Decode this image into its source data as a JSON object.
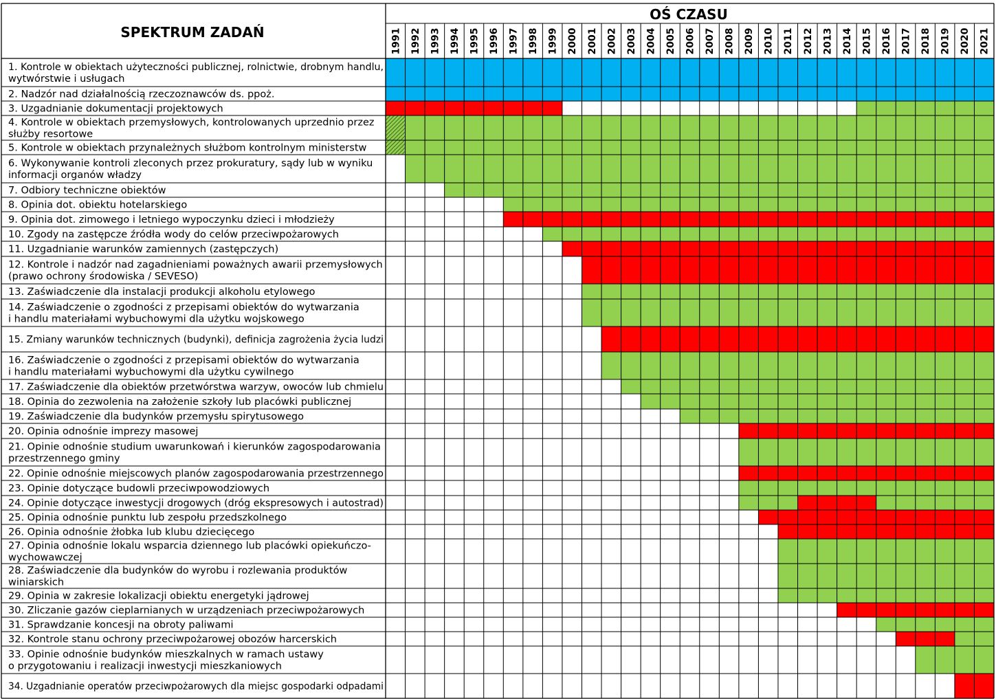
{
  "chart_data": {
    "type": "table",
    "left_header": "SPEKTRUM ZADAŃ",
    "right_header": "OŚ CZASU",
    "years": [
      "1991",
      "1992",
      "1993",
      "1994",
      "1995",
      "1996",
      "1997",
      "1998",
      "1999",
      "2000",
      "2001",
      "2002",
      "2003",
      "2004",
      "2005",
      "2006",
      "2007",
      "2008",
      "2009",
      "2010",
      "2011",
      "2012",
      "2013",
      "2014",
      "2015",
      "2016",
      "2017",
      "2018",
      "2019",
      "2020",
      "2021"
    ],
    "colors": {
      "B": "#00b0f0",
      "R": "#ff0000",
      "G": "#92d050",
      "H": "#92d050"
    },
    "legend_codes": {
      "B": "blue",
      "R": "red",
      "G": "green",
      "H": "hatched green"
    },
    "tasks": [
      {
        "lines": [
          "1. Kontrole w obiektach użyteczności publicznej, rolnictwie, drobnym handlu,",
          "wytwórstwie i usługach"
        ],
        "segments": [
          [
            "B",
            1991,
            2021
          ]
        ]
      },
      {
        "lines": [
          "2. Nadzór nad działalnością rzeczoznawców ds. ppoż."
        ],
        "segments": [
          [
            "B",
            1991,
            2021
          ]
        ]
      },
      {
        "lines": [
          "3. Uzgadnianie dokumentacji projektowych"
        ],
        "segments": [
          [
            "R",
            1991,
            1999
          ],
          [
            "G",
            2015,
            2021
          ]
        ]
      },
      {
        "lines": [
          "4. Kontrole w obiektach przemysłowych, kontrolowanych uprzednio przez",
          "służby resortowe"
        ],
        "segments": [
          [
            "H",
            1991,
            1991
          ],
          [
            "G",
            1992,
            2021
          ]
        ]
      },
      {
        "lines": [
          "5. Kontrole w obiektach przynależnych służbom kontrolnym ministerstw"
        ],
        "segments": [
          [
            "H",
            1991,
            1991
          ],
          [
            "G",
            1992,
            2021
          ]
        ]
      },
      {
        "lines": [
          "6. Wykonywanie kontroli zleconych przez prokuratury, sądy lub w wyniku",
          "informacji organów władzy"
        ],
        "segments": [
          [
            "G",
            1992,
            2021
          ]
        ]
      },
      {
        "lines": [
          "7. Odbiory techniczne obiektów"
        ],
        "segments": [
          [
            "G",
            1994,
            2021
          ]
        ]
      },
      {
        "lines": [
          "8. Opinia dot. obiektu hotelarskiego"
        ],
        "segments": [
          [
            "G",
            1997,
            2021
          ]
        ]
      },
      {
        "lines": [
          "9. Opinia dot. zimowego i letniego wypoczynku dzieci i młodzieży"
        ],
        "segments": [
          [
            "R",
            1997,
            2021
          ]
        ]
      },
      {
        "lines": [
          "10. Zgody na zastępcze źródła wody do celów przeciwpożarowych"
        ],
        "segments": [
          [
            "G",
            1999,
            2021
          ]
        ]
      },
      {
        "lines": [
          "11. Uzgadnianie warunków zamiennych (zastępczych)"
        ],
        "segments": [
          [
            "R",
            2000,
            2021
          ]
        ]
      },
      {
        "lines": [
          "12. Kontrole i nadzór nad zagadnieniami poważnych awarii przemysłowych",
          "(prawo ochrony środowiska / SEVESO)"
        ],
        "segments": [
          [
            "R",
            2001,
            2021
          ]
        ]
      },
      {
        "lines": [
          "13. Zaświadczenie dla instalacji produkcji alkoholu etylowego"
        ],
        "segments": [
          [
            "G",
            2001,
            2021
          ]
        ]
      },
      {
        "lines": [
          "14. Zaświadczenie o zgodności z przepisami obiektów do wytwarzania",
          "i handlu materiałami wybuchowymi dla użytku wojskowego"
        ],
        "segments": [
          [
            "G",
            2001,
            2021
          ]
        ]
      },
      {
        "lines": [
          "15. Zmiany warunków technicznych (budynki), definicja zagrożenia życia ludzi"
        ],
        "segments": [
          [
            "R",
            2002,
            2021
          ]
        ]
      },
      {
        "lines": [
          "16. Zaświadczenie o zgodności z przepisami obiektów do wytwarzania",
          "i handlu materiałami wybuchowymi dla użytku cywilnego"
        ],
        "segments": [
          [
            "G",
            2002,
            2021
          ]
        ]
      },
      {
        "lines": [
          "17. Zaświadczenie dla obiektów przetwórstwa warzyw, owoców lub chmielu"
        ],
        "segments": [
          [
            "G",
            2003,
            2021
          ]
        ]
      },
      {
        "lines": [
          "18. Opinia do zezwolenia na założenie szkoły lub placówki publicznej"
        ],
        "segments": [
          [
            "G",
            2004,
            2021
          ]
        ]
      },
      {
        "lines": [
          "19. Zaświadczenie dla budynków przemysłu spirytusowego"
        ],
        "segments": [
          [
            "G",
            2006,
            2021
          ]
        ]
      },
      {
        "lines": [
          "20. Opinia odnośnie imprezy masowej"
        ],
        "segments": [
          [
            "R",
            2009,
            2021
          ]
        ]
      },
      {
        "lines": [
          "21. Opinie odnośnie studium uwarunkowań i kierunków zagospodarowania",
          "przestrzennego gminy"
        ],
        "segments": [
          [
            "G",
            2009,
            2021
          ]
        ]
      },
      {
        "lines": [
          "22. Opinie odnośnie miejscowych planów zagospodarowania przestrzennego"
        ],
        "segments": [
          [
            "R",
            2009,
            2021
          ]
        ]
      },
      {
        "lines": [
          "23. Opinie dotyczące budowli przeciwpowodziowych"
        ],
        "segments": [
          [
            "G",
            2009,
            2021
          ]
        ]
      },
      {
        "lines": [
          "24. Opinie dotyczące inwestycji drogowych (dróg ekspresowych i autostrad)"
        ],
        "segments": [
          [
            "G",
            2009,
            2011
          ],
          [
            "R",
            2012,
            2015
          ],
          [
            "G",
            2016,
            2021
          ]
        ]
      },
      {
        "lines": [
          "25. Opinia odnośnie punktu lub zespołu przedszkolnego"
        ],
        "segments": [
          [
            "R",
            2010,
            2021
          ]
        ]
      },
      {
        "lines": [
          "26. Opinia odnośnie żłobka lub klubu dziecięcego"
        ],
        "segments": [
          [
            "R",
            2011,
            2021
          ]
        ]
      },
      {
        "lines": [
          "27. Opinia odnośnie lokalu wsparcia dziennego lub placówki opiekuńczo-",
          "wychowawczej"
        ],
        "segments": [
          [
            "G",
            2011,
            2021
          ]
        ]
      },
      {
        "lines": [
          "28. Zaświadczenie dla budynków do wyrobu i rozlewania produktów",
          "winiarskich"
        ],
        "segments": [
          [
            "G",
            2011,
            2021
          ]
        ]
      },
      {
        "lines": [
          "29. Opinia w zakresie lokalizacji obiektu energetyki jądrowej"
        ],
        "segments": [
          [
            "G",
            2011,
            2021
          ]
        ]
      },
      {
        "lines": [
          "30. Zliczanie gazów cieplarnianych w urządzeniach przeciwpożarowych"
        ],
        "segments": [
          [
            "R",
            2014,
            2021
          ]
        ]
      },
      {
        "lines": [
          "31. Sprawdzanie koncesji na obroty paliwami"
        ],
        "segments": [
          [
            "G",
            2016,
            2021
          ]
        ]
      },
      {
        "lines": [
          "32. Kontrole stanu ochrony przeciwpożarowej obozów harcerskich"
        ],
        "segments": [
          [
            "R",
            2017,
            2019
          ],
          [
            "G",
            2020,
            2021
          ]
        ]
      },
      {
        "lines": [
          "33. Opinie odnośnie budynków mieszkalnych w ramach ustawy",
          "o przygotowaniu i realizacji inwestycji mieszkaniowych"
        ],
        "segments": [
          [
            "G",
            2018,
            2021
          ]
        ]
      },
      {
        "lines": [
          "34. Uzgadnianie operatów przeciwpożarowych dla miejsc gospodarki odpadami"
        ],
        "segments": [
          [
            "R",
            2020,
            2021
          ]
        ]
      }
    ]
  }
}
